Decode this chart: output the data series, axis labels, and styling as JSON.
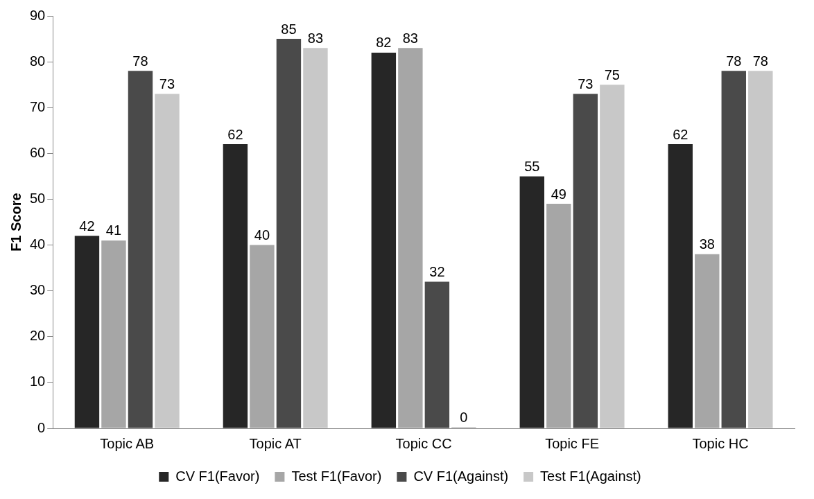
{
  "chart_data": {
    "type": "bar",
    "ylabel": "F1 Score",
    "categories": [
      "Topic AB",
      "Topic AT",
      "Topic CC",
      "Topic FE",
      "Topic HC"
    ],
    "series": [
      {
        "name": "CV F1(Favor)",
        "color": "#262626",
        "values": [
          42,
          62,
          82,
          55,
          62
        ]
      },
      {
        "name": "Test F1(Favor)",
        "color": "#a6a6a6",
        "values": [
          41,
          40,
          83,
          49,
          38
        ]
      },
      {
        "name": "CV F1(Against)",
        "color": "#4a4a4a",
        "values": [
          78,
          85,
          32,
          73,
          78
        ]
      },
      {
        "name": "Test F1(Against)",
        "color": "#c8c8c8",
        "values": [
          73,
          83,
          0,
          75,
          78
        ]
      }
    ],
    "ylim": [
      0,
      90
    ],
    "yticks": [
      0,
      10,
      20,
      30,
      40,
      50,
      60,
      70,
      80,
      90
    ],
    "grid": false,
    "legend": "bottom",
    "data_labels": true
  }
}
